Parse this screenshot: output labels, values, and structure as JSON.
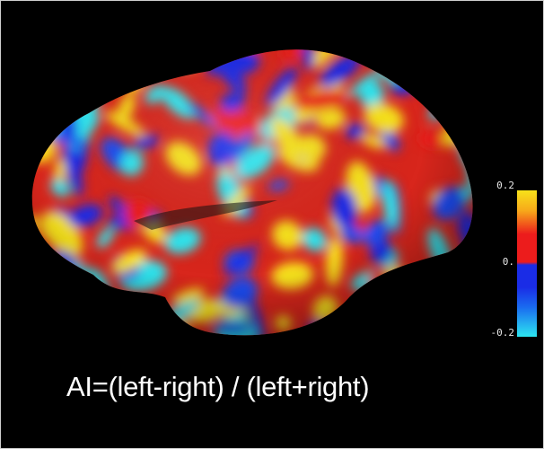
{
  "image": {
    "subject": "inflated-cortical-surface-lateral-view",
    "background_color": "#000000"
  },
  "colorbar": {
    "max_label": "0.2",
    "mid_label": "0.",
    "min_label": "-0.2",
    "colors": {
      "max": "#f7e21a",
      "positive": "#ec1c1c",
      "negative": "#1a2ce6",
      "min": "#2de6f0"
    }
  },
  "caption": {
    "formula": "AI=(left-right) / (left+right)"
  }
}
